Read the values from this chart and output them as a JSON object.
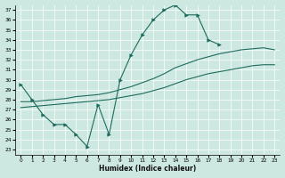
{
  "xlabel": "Humidex (Indice chaleur)",
  "xlim": [
    -0.5,
    23.5
  ],
  "ylim": [
    22.5,
    37.5
  ],
  "yticks": [
    23,
    24,
    25,
    26,
    27,
    28,
    29,
    30,
    31,
    32,
    33,
    34,
    35,
    36,
    37
  ],
  "xticks": [
    0,
    1,
    2,
    3,
    4,
    5,
    6,
    7,
    8,
    9,
    10,
    11,
    12,
    13,
    14,
    15,
    16,
    17,
    18,
    19,
    20,
    21,
    22,
    23
  ],
  "bg_color": "#cce8e0",
  "line_color": "#1e6b5e",
  "grid_color": "#ffffff",
  "zigzag_x": [
    0,
    1,
    2,
    3,
    4,
    5,
    6,
    7,
    8,
    9,
    10,
    11,
    12,
    13,
    14,
    15,
    16,
    17,
    18
  ],
  "zigzag_y": [
    29.5,
    28.0,
    26.5,
    25.5,
    25.5,
    24.5,
    23.3,
    27.5,
    24.5,
    30.0,
    32.5,
    34.5,
    36.0,
    37.0,
    37.5,
    36.5,
    36.5,
    34.0,
    33.5
  ],
  "upper_x": [
    0,
    1,
    2,
    3,
    4,
    5,
    6,
    7,
    8,
    9,
    10,
    11,
    12,
    13,
    14,
    15,
    16,
    17,
    18,
    19,
    20,
    21,
    22,
    23
  ],
  "upper_y": [
    27.8,
    27.8,
    27.9,
    28.0,
    28.1,
    28.3,
    28.4,
    28.5,
    28.7,
    29.0,
    29.3,
    29.7,
    30.1,
    30.6,
    31.2,
    31.6,
    32.0,
    32.3,
    32.6,
    32.8,
    33.0,
    33.1,
    33.2,
    33.0
  ],
  "lower_x": [
    0,
    1,
    2,
    3,
    4,
    5,
    6,
    7,
    8,
    9,
    10,
    11,
    12,
    13,
    14,
    15,
    16,
    17,
    18,
    19,
    20,
    21,
    22,
    23
  ],
  "lower_y": [
    27.2,
    27.3,
    27.4,
    27.5,
    27.6,
    27.7,
    27.8,
    27.9,
    28.0,
    28.2,
    28.4,
    28.6,
    28.9,
    29.2,
    29.6,
    30.0,
    30.3,
    30.6,
    30.8,
    31.0,
    31.2,
    31.4,
    31.5,
    31.5
  ]
}
